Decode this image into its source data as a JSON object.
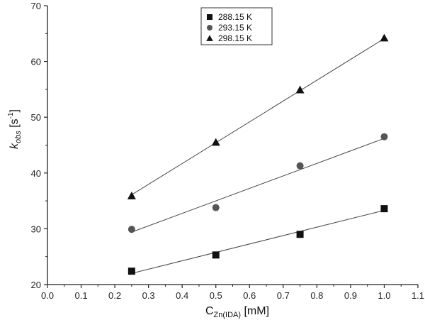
{
  "chart_data": {
    "type": "scatter",
    "title": "",
    "xlim": [
      0.0,
      1.1
    ],
    "ylim": [
      20,
      70
    ],
    "x_ticks": [
      0.0,
      0.1,
      0.2,
      0.3,
      0.4,
      0.5,
      0.6,
      0.7,
      0.8,
      0.9,
      1.0,
      1.1
    ],
    "y_ticks": [
      20,
      30,
      40,
      50,
      60,
      70
    ],
    "x_tick_labels": [
      "0.0",
      "0.1",
      "0.2",
      "0.3",
      "0.4",
      "0.5",
      "0.6",
      "0.7",
      "0.8",
      "0.9",
      "1.0",
      "1.1"
    ],
    "y_tick_labels": [
      "20",
      "30",
      "40",
      "50",
      "60",
      "70"
    ],
    "xlabel": {
      "main": "C",
      "sub": "Zn(IDA)",
      "unit": " [mM]"
    },
    "ylabel": {
      "main": "k",
      "sub": "obs",
      "unit_open": " [s",
      "sup": "-1",
      "unit_close": "]"
    },
    "grid": false,
    "legend_position": "top-center",
    "series": [
      {
        "name": "288.15 K",
        "marker": "square",
        "color": "#111111",
        "x": [
          0.25,
          0.5,
          0.75,
          1.0
        ],
        "y": [
          22.4,
          25.3,
          29.0,
          33.6
        ],
        "fit": {
          "x": [
            0.25,
            1.0
          ],
          "y": [
            22.0,
            33.3
          ]
        }
      },
      {
        "name": "293.15 K",
        "marker": "circle",
        "color": "#555555",
        "x": [
          0.25,
          0.5,
          0.75,
          1.0
        ],
        "y": [
          29.9,
          33.8,
          41.3,
          46.5
        ],
        "fit": {
          "x": [
            0.25,
            1.0
          ],
          "y": [
            29.4,
            46.2
          ]
        }
      },
      {
        "name": "298.15 K",
        "marker": "triangle",
        "color": "#111111",
        "x": [
          0.25,
          0.5,
          0.75,
          1.0
        ],
        "y": [
          35.9,
          45.5,
          54.9,
          64.2
        ],
        "fit": {
          "x": [
            0.25,
            1.0
          ],
          "y": [
            36.1,
            64.1
          ]
        }
      }
    ]
  }
}
